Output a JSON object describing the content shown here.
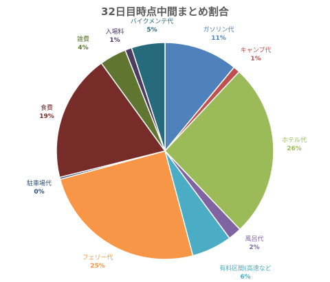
{
  "chart_data": {
    "type": "pie",
    "title": "32日目時点中間まとめ割合",
    "slices": [
      {
        "label": "ガソリン代",
        "value": 11,
        "display": "11%",
        "color": "#4F81BD"
      },
      {
        "label": "キャンプ代",
        "value": 1,
        "display": "1%",
        "color": "#C0504D"
      },
      {
        "label": "ホテル代",
        "value": 26,
        "display": "26%",
        "color": "#9BBB59"
      },
      {
        "label": "風呂代",
        "value": 2,
        "display": "2%",
        "color": "#8064A2"
      },
      {
        "label": "有料区間(高速など",
        "value": 6,
        "display": "6%",
        "color": "#4BACC6"
      },
      {
        "label": "フェリー代",
        "value": 25,
        "display": "25%",
        "color": "#F79646"
      },
      {
        "label": "駐車場代",
        "value": 0.3,
        "display": "0%",
        "color": "#2C4D75"
      },
      {
        "label": "食費",
        "value": 19,
        "display": "19%",
        "color": "#772C2A"
      },
      {
        "label": "雑費",
        "value": 4,
        "display": "4%",
        "color": "#5F7530"
      },
      {
        "label": "入場料",
        "value": 1,
        "display": "1%",
        "color": "#4D3B62"
      },
      {
        "label": "バイクメンテ代",
        "value": 5,
        "display": "5%",
        "color": "#276A7C"
      }
    ],
    "label_colors": [
      "#4F81BD",
      "#C0504D",
      "#9BBB59",
      "#8064A2",
      "#4BACC6",
      "#F79646",
      "#2C4D75",
      "#772C2A",
      "#5F7530",
      "#4D3B62",
      "#276A7C"
    ],
    "legend": "none",
    "start_angle": "top"
  }
}
